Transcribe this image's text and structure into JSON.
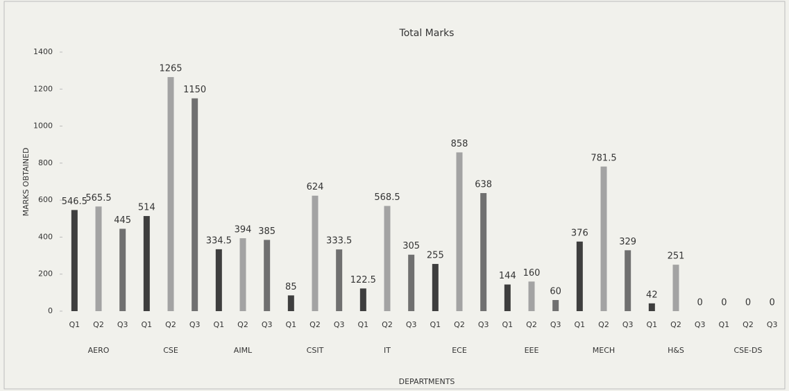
{
  "chart_data": {
    "type": "grouped-bar",
    "title": "Total Marks",
    "x_label": "DEPARTMENTS",
    "y_label": "MARKS OBTAINED",
    "groups": [
      {
        "name": "AERO",
        "categories": [
          "Q1",
          "Q2",
          "Q3"
        ],
        "values": [
          546.5,
          565.5,
          445
        ]
      },
      {
        "name": "CSE",
        "categories": [
          "Q1",
          "Q2",
          "Q3"
        ],
        "values": [
          514,
          1265,
          1150
        ]
      },
      {
        "name": "AIML",
        "categories": [
          "Q1",
          "Q2",
          "Q3"
        ],
        "values": [
          334.5,
          394,
          385
        ]
      },
      {
        "name": "CSIT",
        "categories": [
          "Q1",
          "Q2",
          "Q3"
        ],
        "values": [
          85,
          624,
          333.5
        ]
      },
      {
        "name": "IT",
        "categories": [
          "Q1",
          "Q2",
          "Q3"
        ],
        "values": [
          122.5,
          568.5,
          305
        ]
      },
      {
        "name": "ECE",
        "categories": [
          "Q1",
          "Q2",
          "Q3"
        ],
        "values": [
          255,
          858,
          638
        ]
      },
      {
        "name": "EEE",
        "categories": [
          "Q1",
          "Q2",
          "Q3"
        ],
        "values": [
          144,
          160,
          60
        ]
      },
      {
        "name": "MECH",
        "categories": [
          "Q1",
          "Q2",
          "Q3"
        ],
        "values": [
          376,
          781.5,
          329
        ]
      },
      {
        "name": "H&S",
        "categories": [
          "Q1",
          "Q2",
          "Q3"
        ],
        "values": [
          42,
          251,
          0
        ]
      },
      {
        "name": "CSE-DS",
        "categories": [
          "Q1",
          "Q2",
          "Q3"
        ],
        "values": [
          0,
          0,
          0
        ]
      }
    ],
    "bar_colors": [
      "#3e3e3e",
      "#a3a3a3",
      "#707070"
    ],
    "ylim": [
      0,
      1400
    ],
    "yticks": [
      0,
      200,
      400,
      600,
      800,
      1000,
      1200,
      1400
    ],
    "grid": false
  }
}
